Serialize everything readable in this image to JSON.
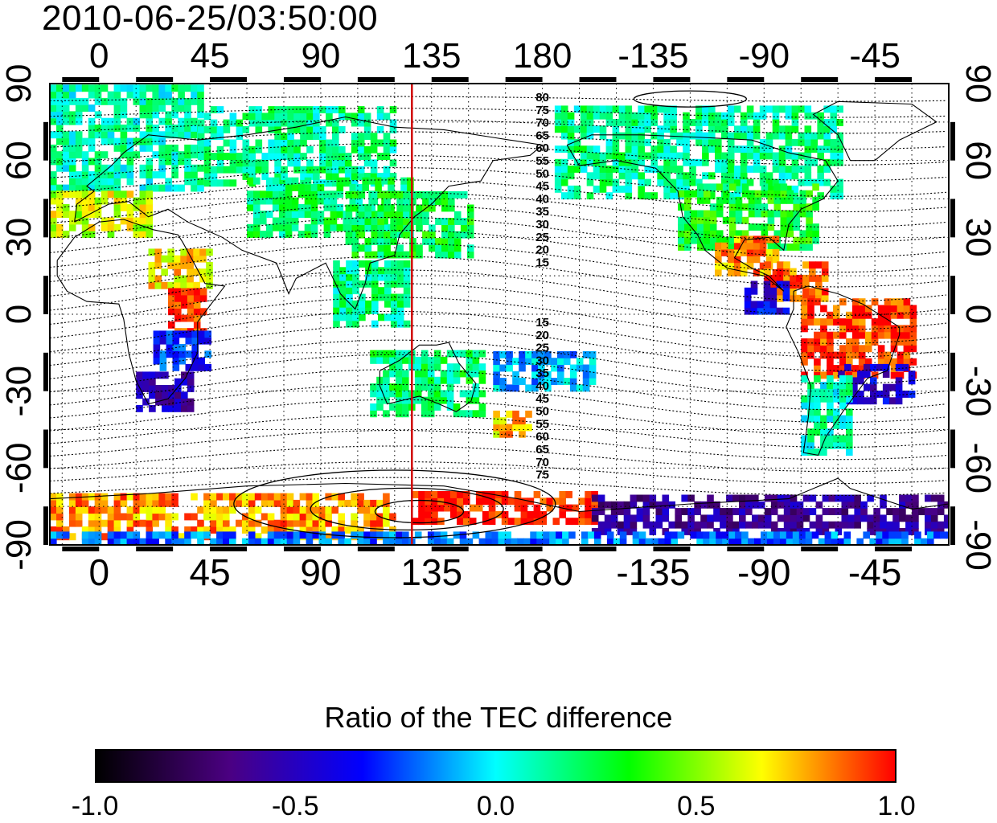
{
  "title": "2010-06-25/03:50:00",
  "chart_data": {
    "type": "heatmap",
    "title": "2010-06-25/03:50:00",
    "x_axis": {
      "tick_labels": [
        "0",
        "45",
        "90",
        "135",
        "180",
        "-135",
        "-90",
        "-45"
      ],
      "tick_values_deg_east": [
        0,
        45,
        90,
        135,
        180,
        225,
        270,
        315
      ],
      "range_deg_east": [
        -20,
        345
      ]
    },
    "y_axis": {
      "tick_labels": [
        "90",
        "60",
        "30",
        "0",
        "-30",
        "-60",
        "-90"
      ],
      "tick_values": [
        90,
        60,
        30,
        0,
        -30,
        -60,
        -90
      ],
      "range": [
        -90,
        90
      ]
    },
    "meridian_marker_lon": 127,
    "contour_labels_north": [
      "80",
      "75",
      "70",
      "65",
      "60",
      "55",
      "50",
      "45",
      "40",
      "35",
      "30",
      "25",
      "20",
      "15"
    ],
    "contour_labels_south": [
      "15",
      "20",
      "25",
      "30",
      "35",
      "40",
      "45",
      "50",
      "55",
      "60",
      "65",
      "70",
      "75"
    ],
    "colorbar": {
      "label": "Ratio of the TEC difference",
      "min": -1.0,
      "max": 1.0,
      "tick_labels": [
        "-1.0",
        "-0.5",
        "0.0",
        "0.5",
        "1.0"
      ],
      "tick_values": [
        -1.0,
        -0.5,
        0.0,
        0.5,
        1.0
      ],
      "colors": [
        "#000000",
        "#4b0082",
        "#0000ff",
        "#00ffff",
        "#00ff00",
        "#ffff00",
        "#ff0000"
      ]
    },
    "regions": [
      {
        "lon": [
          -20,
          40
        ],
        "lat": [
          48,
          88
        ],
        "value": 0.1
      },
      {
        "lon": [
          40,
          120
        ],
        "lat": [
          50,
          80
        ],
        "value": 0.15
      },
      {
        "lon": [
          60,
          125
        ],
        "lat": [
          30,
          52
        ],
        "value": 0.2
      },
      {
        "lon": [
          100,
          150
        ],
        "lat": [
          22,
          48
        ],
        "value": 0.25
      },
      {
        "lon": [
          -20,
          20
        ],
        "lat": [
          30,
          48
        ],
        "value": 0.6
      },
      {
        "lon": [
          20,
          45
        ],
        "lat": [
          10,
          25
        ],
        "value": 0.7
      },
      {
        "lon": [
          28,
          42
        ],
        "lat": [
          -8,
          8
        ],
        "value": 0.95
      },
      {
        "lon": [
          22,
          45
        ],
        "lat": [
          -22,
          -8
        ],
        "value": -0.3
      },
      {
        "lon": [
          15,
          38
        ],
        "lat": [
          -38,
          -24
        ],
        "value": -0.55
      },
      {
        "lon": [
          95,
          125
        ],
        "lat": [
          -5,
          20
        ],
        "value": 0.15
      },
      {
        "lon": [
          110,
          155
        ],
        "lat": [
          -40,
          -15
        ],
        "value": 0.2
      },
      {
        "lon": [
          160,
          200
        ],
        "lat": [
          -30,
          -15
        ],
        "value": -0.1
      },
      {
        "lon": [
          160,
          175
        ],
        "lat": [
          -48,
          -40
        ],
        "value": 0.75
      },
      {
        "lon": [
          185,
          300
        ],
        "lat": [
          45,
          80
        ],
        "value": 0.15
      },
      {
        "lon": [
          235,
          290
        ],
        "lat": [
          25,
          50
        ],
        "value": 0.3
      },
      {
        "lon": [
          250,
          275
        ],
        "lat": [
          15,
          30
        ],
        "value": 0.8
      },
      {
        "lon": [
          270,
          295
        ],
        "lat": [
          5,
          20
        ],
        "value": 0.9
      },
      {
        "lon": [
          262,
          280
        ],
        "lat": [
          0,
          12
        ],
        "value": -0.4
      },
      {
        "lon": [
          285,
          330
        ],
        "lat": [
          -25,
          5
        ],
        "value": 0.95
      },
      {
        "lon": [
          300,
          330
        ],
        "lat": [
          -35,
          -20
        ],
        "value": -0.45
      },
      {
        "lon": [
          285,
          305
        ],
        "lat": [
          -55,
          -25
        ],
        "value": 0.1
      },
      {
        "lon": [
          -20,
          120
        ],
        "lat": [
          -88,
          -72
        ],
        "value": 0.8
      },
      {
        "lon": [
          127,
          200
        ],
        "lat": [
          -82,
          -70
        ],
        "value": 1.0
      },
      {
        "lon": [
          200,
          345
        ],
        "lat": [
          -86,
          -72
        ],
        "value": -0.6
      },
      {
        "lon": [
          -20,
          345
        ],
        "lat": [
          -90,
          -86
        ],
        "value": -0.2
      }
    ]
  }
}
